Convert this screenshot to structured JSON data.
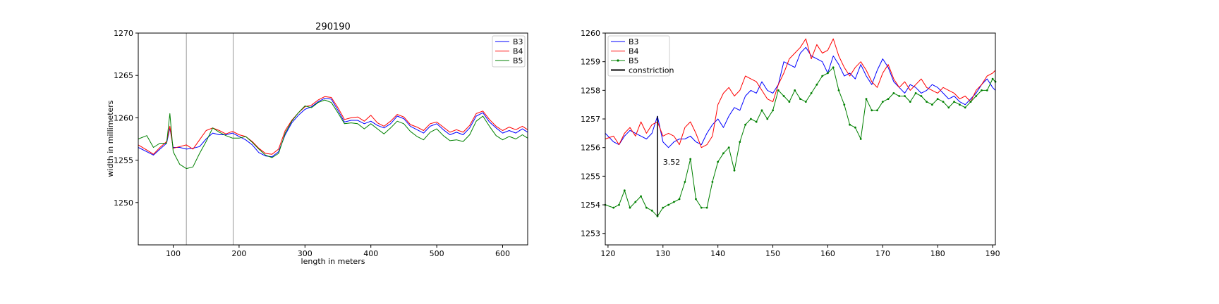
{
  "chart_data": [
    {
      "type": "line",
      "title": "290190",
      "xlabel": "length in meters",
      "ylabel": "width in millimeters",
      "xlim": [
        47,
        638
      ],
      "ylim": [
        1245,
        1270
      ],
      "xticks": [
        100,
        200,
        300,
        400,
        500,
        600
      ],
      "yticks": [
        1250,
        1255,
        1260,
        1265,
        1270
      ],
      "vlines": [
        120,
        191
      ],
      "legend": "top-right",
      "grid": false,
      "series": [
        {
          "name": "B3",
          "color": "#0000ff",
          "x": [
            47,
            60,
            70,
            80,
            90,
            95,
            100,
            110,
            120,
            130,
            140,
            150,
            160,
            170,
            180,
            190,
            200,
            210,
            220,
            230,
            240,
            250,
            260,
            270,
            280,
            290,
            300,
            310,
            320,
            330,
            340,
            350,
            360,
            370,
            380,
            390,
            400,
            410,
            420,
            430,
            440,
            450,
            460,
            470,
            480,
            490,
            500,
            510,
            520,
            530,
            540,
            550,
            560,
            570,
            580,
            590,
            600,
            610,
            620,
            630,
            638
          ],
          "y": [
            1256.5,
            1256.0,
            1255.6,
            1256.3,
            1257.0,
            1258.8,
            1256.5,
            1256.5,
            1256.3,
            1256.4,
            1256.6,
            1257.5,
            1258.2,
            1258.0,
            1258.0,
            1258.2,
            1257.8,
            1257.4,
            1256.8,
            1255.9,
            1255.5,
            1255.4,
            1256.0,
            1258.0,
            1259.4,
            1260.3,
            1261.0,
            1261.3,
            1261.9,
            1262.3,
            1262.2,
            1260.9,
            1259.5,
            1259.7,
            1259.7,
            1259.3,
            1259.6,
            1259.1,
            1258.8,
            1259.3,
            1260.2,
            1259.9,
            1259.0,
            1258.6,
            1258.2,
            1259.0,
            1259.3,
            1258.6,
            1258.0,
            1258.3,
            1258.0,
            1258.8,
            1260.2,
            1260.6,
            1259.5,
            1258.8,
            1258.2,
            1258.5,
            1258.2,
            1258.7,
            1258.3
          ]
        },
        {
          "name": "B4",
          "color": "#ff0000",
          "x": [
            47,
            60,
            70,
            80,
            90,
            95,
            100,
            110,
            120,
            130,
            140,
            150,
            160,
            170,
            180,
            190,
            200,
            210,
            220,
            230,
            240,
            250,
            260,
            270,
            280,
            290,
            300,
            310,
            320,
            330,
            340,
            350,
            360,
            370,
            380,
            390,
            400,
            410,
            420,
            430,
            440,
            450,
            460,
            470,
            480,
            490,
            500,
            510,
            520,
            530,
            540,
            550,
            560,
            570,
            580,
            590,
            600,
            610,
            620,
            630,
            638
          ],
          "y": [
            1256.8,
            1256.2,
            1255.7,
            1256.5,
            1257.2,
            1259.0,
            1256.4,
            1256.6,
            1256.8,
            1256.3,
            1257.4,
            1258.5,
            1258.8,
            1258.5,
            1258.1,
            1258.4,
            1258.0,
            1257.8,
            1257.2,
            1256.4,
            1255.8,
            1255.7,
            1256.3,
            1258.5,
            1259.7,
            1260.6,
            1261.3,
            1261.5,
            1262.1,
            1262.5,
            1262.4,
            1261.2,
            1259.8,
            1260.0,
            1260.1,
            1259.6,
            1260.3,
            1259.4,
            1259.0,
            1259.6,
            1260.4,
            1260.1,
            1259.2,
            1258.9,
            1258.5,
            1259.3,
            1259.5,
            1258.9,
            1258.3,
            1258.6,
            1258.3,
            1259.1,
            1260.5,
            1260.8,
            1259.8,
            1259.0,
            1258.5,
            1258.9,
            1258.6,
            1259.0,
            1258.6
          ]
        },
        {
          "name": "B5",
          "color": "#008000",
          "x": [
            47,
            60,
            70,
            80,
            90,
            95,
            100,
            110,
            120,
            130,
            140,
            150,
            160,
            170,
            180,
            190,
            200,
            210,
            220,
            230,
            240,
            250,
            260,
            270,
            280,
            290,
            300,
            310,
            320,
            330,
            340,
            350,
            360,
            370,
            380,
            390,
            400,
            410,
            420,
            430,
            440,
            450,
            460,
            470,
            480,
            490,
            500,
            510,
            520,
            530,
            540,
            550,
            560,
            570,
            580,
            590,
            600,
            610,
            620,
            630,
            638
          ],
          "y": [
            1257.5,
            1257.9,
            1256.5,
            1257.0,
            1257.0,
            1260.5,
            1256.0,
            1254.5,
            1254.0,
            1254.2,
            1255.8,
            1257.2,
            1258.8,
            1258.3,
            1257.9,
            1257.6,
            1257.6,
            1257.8,
            1257.1,
            1256.3,
            1255.6,
            1255.3,
            1255.8,
            1258.2,
            1259.6,
            1260.6,
            1261.4,
            1261.2,
            1261.8,
            1262.1,
            1261.8,
            1260.6,
            1259.3,
            1259.4,
            1259.3,
            1258.7,
            1259.3,
            1258.7,
            1258.1,
            1258.8,
            1259.6,
            1259.3,
            1258.4,
            1257.8,
            1257.4,
            1258.3,
            1258.7,
            1257.9,
            1257.3,
            1257.4,
            1257.2,
            1258.0,
            1259.6,
            1260.2,
            1259.0,
            1257.9,
            1257.4,
            1257.8,
            1257.5,
            1258.0,
            1257.6
          ]
        }
      ]
    },
    {
      "type": "line",
      "xlim": [
        119.5,
        190.5
      ],
      "ylim": [
        1252.6,
        1260.0
      ],
      "xticks": [
        120,
        130,
        140,
        150,
        160,
        170,
        180,
        190
      ],
      "yticks": [
        1253,
        1254,
        1255,
        1256,
        1257,
        1258,
        1259,
        1260
      ],
      "legend": "top-left",
      "grid": false,
      "series": [
        {
          "name": "B3",
          "color": "#0000ff",
          "marker": false,
          "x": [
            119.5,
            121,
            122,
            123,
            124,
            125,
            126,
            127,
            128,
            129,
            130,
            131,
            132,
            133,
            134,
            135,
            136,
            137,
            138,
            139,
            140,
            141,
            142,
            143,
            144,
            145,
            146,
            147,
            148,
            149,
            150,
            151,
            152,
            153,
            154,
            155,
            156,
            157,
            158,
            159,
            160,
            161,
            162,
            163,
            164,
            165,
            166,
            167,
            168,
            169,
            170,
            171,
            172,
            173,
            174,
            175,
            176,
            177,
            178,
            179,
            180,
            181,
            182,
            183,
            184,
            185,
            186,
            187,
            188,
            189,
            190,
            190.5
          ],
          "y": [
            1256.5,
            1256.2,
            1256.1,
            1256.4,
            1256.6,
            1256.5,
            1256.4,
            1256.3,
            1256.5,
            1257.1,
            1256.2,
            1256.0,
            1256.2,
            1256.3,
            1256.3,
            1256.4,
            1256.2,
            1256.1,
            1256.5,
            1256.8,
            1257.0,
            1256.7,
            1257.1,
            1257.4,
            1257.3,
            1257.8,
            1258.0,
            1257.9,
            1258.3,
            1258.0,
            1257.9,
            1258.2,
            1259.0,
            1258.9,
            1258.8,
            1259.3,
            1259.5,
            1259.2,
            1259.1,
            1259.0,
            1258.6,
            1259.2,
            1258.9,
            1258.5,
            1258.6,
            1258.4,
            1258.9,
            1258.5,
            1258.2,
            1258.7,
            1259.1,
            1258.8,
            1258.3,
            1258.1,
            1257.9,
            1258.2,
            1258.1,
            1257.9,
            1258.0,
            1258.2,
            1258.1,
            1257.9,
            1257.7,
            1257.8,
            1257.6,
            1257.5,
            1257.7,
            1257.9,
            1258.2,
            1258.4,
            1258.1,
            1258.0
          ]
        },
        {
          "name": "B4",
          "color": "#ff0000",
          "marker": false,
          "x": [
            119.5,
            121,
            122,
            123,
            124,
            125,
            126,
            127,
            128,
            129,
            130,
            131,
            132,
            133,
            134,
            135,
            136,
            137,
            138,
            139,
            140,
            141,
            142,
            143,
            144,
            145,
            146,
            147,
            148,
            149,
            150,
            151,
            152,
            153,
            154,
            155,
            156,
            157,
            158,
            159,
            160,
            161,
            162,
            163,
            164,
            165,
            166,
            167,
            168,
            169,
            170,
            171,
            172,
            173,
            174,
            175,
            176,
            177,
            178,
            179,
            180,
            181,
            182,
            183,
            184,
            185,
            186,
            187,
            188,
            189,
            190,
            190.5
          ],
          "y": [
            1256.3,
            1256.4,
            1256.1,
            1256.5,
            1256.7,
            1256.4,
            1256.9,
            1256.5,
            1256.8,
            1256.9,
            1256.4,
            1256.5,
            1256.4,
            1256.1,
            1256.7,
            1256.9,
            1256.5,
            1256.0,
            1256.1,
            1256.4,
            1257.5,
            1257.9,
            1258.1,
            1257.8,
            1258.0,
            1258.5,
            1258.4,
            1258.3,
            1258.0,
            1257.7,
            1257.6,
            1258.2,
            1258.6,
            1259.1,
            1259.3,
            1259.5,
            1259.8,
            1259.1,
            1259.6,
            1259.3,
            1259.4,
            1259.8,
            1259.2,
            1258.8,
            1258.5,
            1258.8,
            1259.0,
            1258.7,
            1258.3,
            1258.1,
            1258.6,
            1258.9,
            1258.4,
            1258.1,
            1258.3,
            1258.0,
            1258.2,
            1258.4,
            1258.1,
            1258.0,
            1257.9,
            1258.1,
            1258.0,
            1257.9,
            1257.7,
            1257.8,
            1257.6,
            1258.0,
            1258.2,
            1258.5,
            1258.6,
            1258.7
          ]
        },
        {
          "name": "B5",
          "color": "#008000",
          "marker": true,
          "x": [
            119.5,
            121,
            122,
            123,
            124,
            125,
            126,
            127,
            128,
            129,
            130,
            131,
            132,
            133,
            134,
            135,
            136,
            137,
            138,
            139,
            140,
            141,
            142,
            143,
            144,
            145,
            146,
            147,
            148,
            149,
            150,
            151,
            152,
            153,
            154,
            155,
            156,
            157,
            158,
            159,
            160,
            161,
            162,
            163,
            164,
            165,
            166,
            167,
            168,
            169,
            170,
            171,
            172,
            173,
            174,
            175,
            176,
            177,
            178,
            179,
            180,
            181,
            182,
            183,
            184,
            185,
            186,
            187,
            188,
            189,
            190,
            190.5
          ],
          "y": [
            1254.0,
            1253.9,
            1254.0,
            1254.5,
            1253.9,
            1254.1,
            1254.3,
            1253.9,
            1253.8,
            1253.6,
            1253.9,
            1254.0,
            1254.1,
            1254.2,
            1254.8,
            1255.6,
            1254.2,
            1253.9,
            1253.9,
            1254.8,
            1255.5,
            1255.8,
            1256.0,
            1255.2,
            1256.2,
            1256.8,
            1257.0,
            1256.9,
            1257.3,
            1257.0,
            1257.3,
            1258.0,
            1257.8,
            1257.6,
            1258.0,
            1257.7,
            1257.6,
            1257.9,
            1258.2,
            1258.5,
            1258.6,
            1258.8,
            1258.0,
            1257.5,
            1256.8,
            1256.7,
            1256.3,
            1257.7,
            1257.3,
            1257.3,
            1257.6,
            1257.7,
            1257.9,
            1257.8,
            1257.8,
            1257.6,
            1257.9,
            1257.8,
            1257.6,
            1257.5,
            1257.7,
            1257.6,
            1257.4,
            1257.6,
            1257.5,
            1257.4,
            1257.6,
            1257.8,
            1258.0,
            1258.0,
            1258.4,
            1258.3
          ]
        },
        {
          "name": "constriction",
          "color": "#000000",
          "marker": false,
          "x": [
            129,
            129
          ],
          "y": [
            1253.6,
            1257.1
          ]
        }
      ],
      "annotations": [
        {
          "text": "3.52",
          "x": 130,
          "y": 1255.4
        }
      ]
    }
  ]
}
